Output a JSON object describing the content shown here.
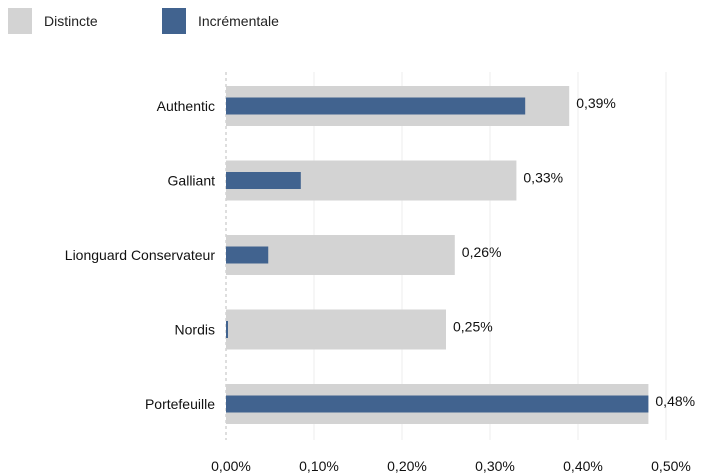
{
  "chart_data": {
    "type": "bar",
    "orientation": "horizontal",
    "categories": [
      "Authentic",
      "Galliant",
      "Lionguard Conservateur",
      "Nordis",
      "Portefeuille"
    ],
    "series": [
      {
        "name": "Distincte",
        "values": [
          0.39,
          0.33,
          0.26,
          0.25,
          0.48
        ],
        "color": "#d3d3d3"
      },
      {
        "name": "Incrémentale",
        "values": [
          0.34,
          0.085,
          0.048,
          0.002,
          0.48
        ],
        "color": "#41638f"
      }
    ],
    "data_labels": [
      "0,39%",
      "0,33%",
      "0,26%",
      "0,25%",
      "0,48%"
    ],
    "xlim": [
      0,
      0.5
    ],
    "x_ticks": [
      0,
      0.1,
      0.2,
      0.3,
      0.4,
      0.5
    ],
    "x_tick_labels": [
      "0,00%",
      "0,10%",
      "0,20%",
      "0,30%",
      "0,40%",
      "0,50%"
    ],
    "legend": {
      "position": "top-left",
      "items": [
        "Distincte",
        "Incrémentale"
      ]
    },
    "grid": "vertical"
  }
}
